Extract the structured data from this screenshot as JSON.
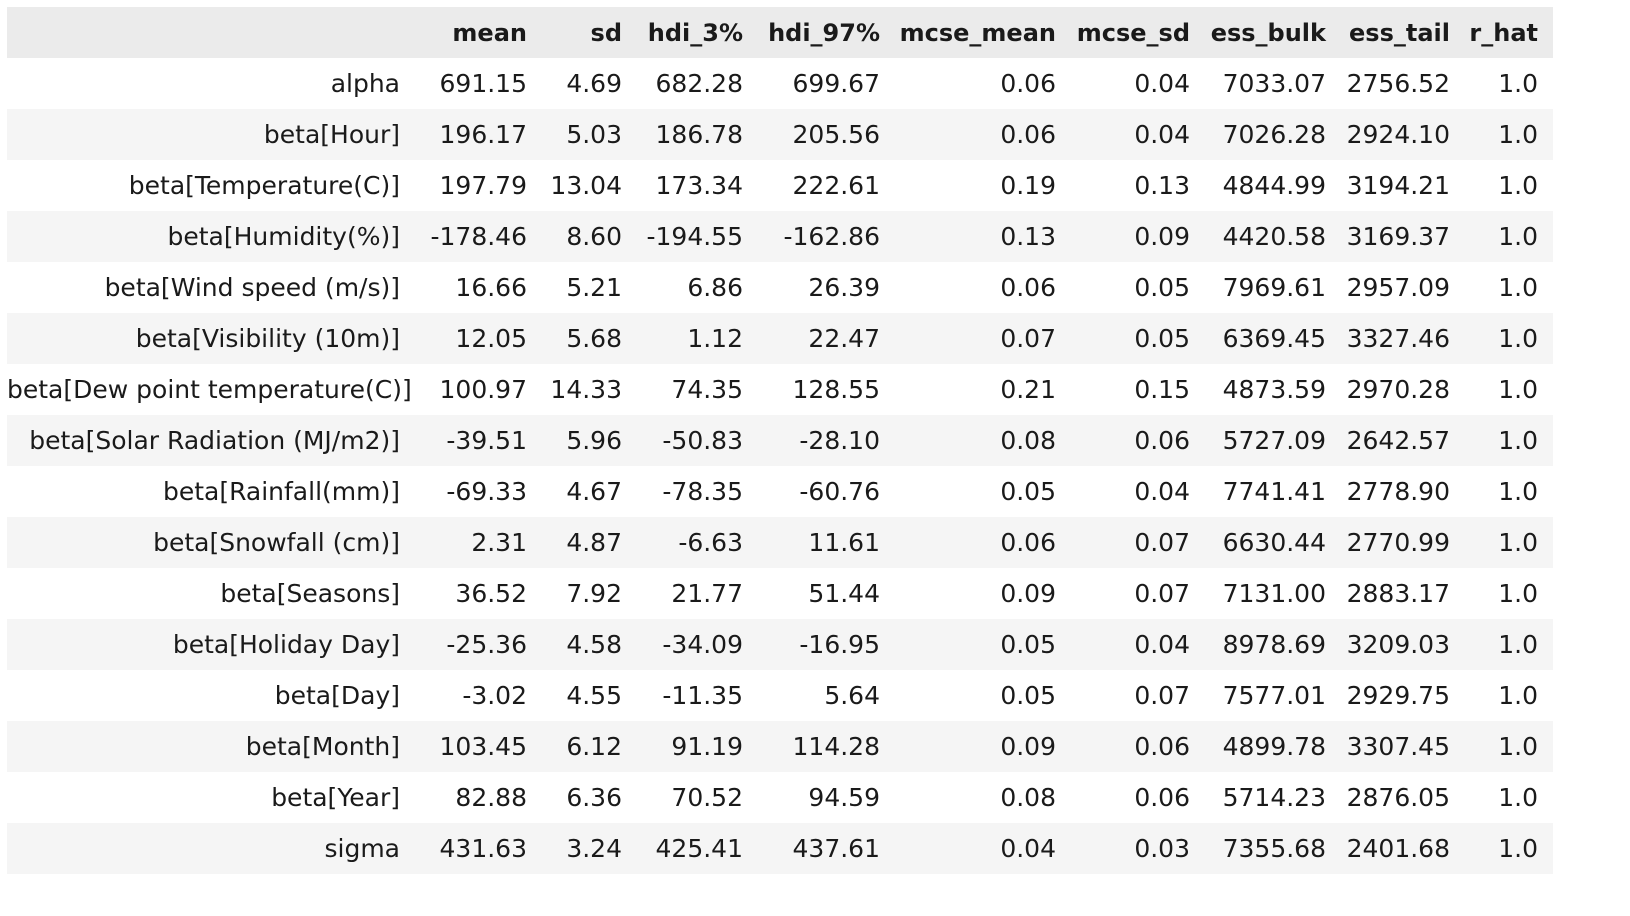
{
  "table": {
    "columns": [
      "",
      "mean",
      "sd",
      "hdi_3%",
      "hdi_97%",
      "mcse_mean",
      "mcse_sd",
      "ess_bulk",
      "ess_tail",
      "r_hat"
    ],
    "rows": [
      [
        "alpha",
        "691.15",
        "4.69",
        "682.28",
        "699.67",
        "0.06",
        "0.04",
        "7033.07",
        "2756.52",
        "1.0"
      ],
      [
        "beta[Hour]",
        "196.17",
        "5.03",
        "186.78",
        "205.56",
        "0.06",
        "0.04",
        "7026.28",
        "2924.10",
        "1.0"
      ],
      [
        "beta[Temperature(C)]",
        "197.79",
        "13.04",
        "173.34",
        "222.61",
        "0.19",
        "0.13",
        "4844.99",
        "3194.21",
        "1.0"
      ],
      [
        "beta[Humidity(%)]",
        "-178.46",
        "8.60",
        "-194.55",
        "-162.86",
        "0.13",
        "0.09",
        "4420.58",
        "3169.37",
        "1.0"
      ],
      [
        "beta[Wind speed (m/s)]",
        "16.66",
        "5.21",
        "6.86",
        "26.39",
        "0.06",
        "0.05",
        "7969.61",
        "2957.09",
        "1.0"
      ],
      [
        "beta[Visibility (10m)]",
        "12.05",
        "5.68",
        "1.12",
        "22.47",
        "0.07",
        "0.05",
        "6369.45",
        "3327.46",
        "1.0"
      ],
      [
        "beta[Dew point temperature(C)]",
        "100.97",
        "14.33",
        "74.35",
        "128.55",
        "0.21",
        "0.15",
        "4873.59",
        "2970.28",
        "1.0"
      ],
      [
        "beta[Solar Radiation (MJ/m2)]",
        "-39.51",
        "5.96",
        "-50.83",
        "-28.10",
        "0.08",
        "0.06",
        "5727.09",
        "2642.57",
        "1.0"
      ],
      [
        "beta[Rainfall(mm)]",
        "-69.33",
        "4.67",
        "-78.35",
        "-60.76",
        "0.05",
        "0.04",
        "7741.41",
        "2778.90",
        "1.0"
      ],
      [
        "beta[Snowfall (cm)]",
        "2.31",
        "4.87",
        "-6.63",
        "11.61",
        "0.06",
        "0.07",
        "6630.44",
        "2770.99",
        "1.0"
      ],
      [
        "beta[Seasons]",
        "36.52",
        "7.92",
        "21.77",
        "51.44",
        "0.09",
        "0.07",
        "7131.00",
        "2883.17",
        "1.0"
      ],
      [
        "beta[Holiday Day]",
        "-25.36",
        "4.58",
        "-34.09",
        "-16.95",
        "0.05",
        "0.04",
        "8978.69",
        "3209.03",
        "1.0"
      ],
      [
        "beta[Day]",
        "-3.02",
        "4.55",
        "-11.35",
        "5.64",
        "0.05",
        "0.07",
        "7577.01",
        "2929.75",
        "1.0"
      ],
      [
        "beta[Month]",
        "103.45",
        "6.12",
        "91.19",
        "114.28",
        "0.09",
        "0.06",
        "4899.78",
        "3307.45",
        "1.0"
      ],
      [
        "beta[Year]",
        "82.88",
        "6.36",
        "70.52",
        "94.59",
        "0.08",
        "0.06",
        "5714.23",
        "2876.05",
        "1.0"
      ],
      [
        "sigma",
        "431.63",
        "3.24",
        "425.41",
        "437.61",
        "0.04",
        "0.03",
        "7355.68",
        "2401.68",
        "1.0"
      ]
    ]
  }
}
